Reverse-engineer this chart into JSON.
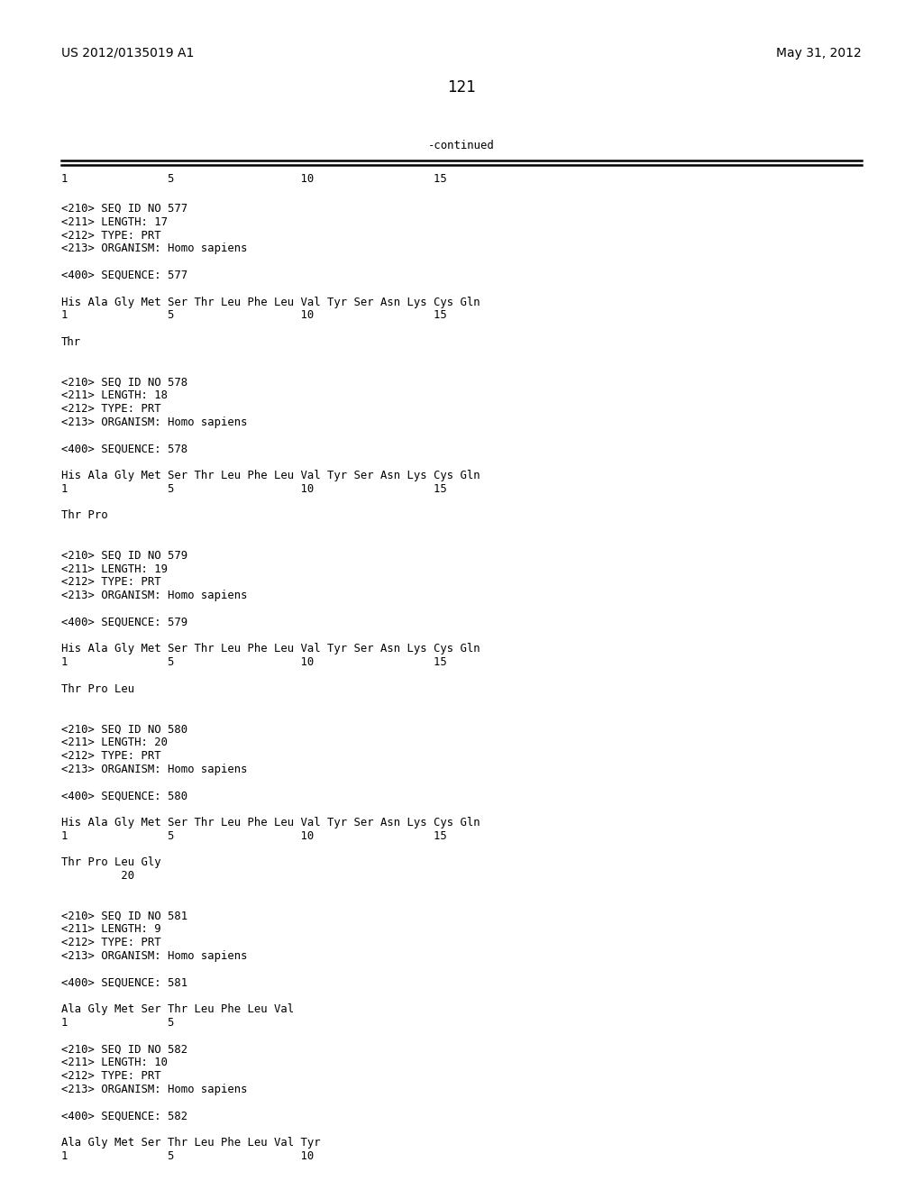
{
  "background_color": "#ffffff",
  "header_left": "US 2012/0135019 A1",
  "header_right": "May 31, 2012",
  "page_number": "121",
  "continued_label": "-continued",
  "lines": [
    "<210> SEQ ID NO 577",
    "<211> LENGTH: 17",
    "<212> TYPE: PRT",
    "<213> ORGANISM: Homo sapiens",
    "",
    "<400> SEQUENCE: 577",
    "",
    "His Ala Gly Met Ser Thr Leu Phe Leu Val Tyr Ser Asn Lys Cys Gln",
    "1               5                   10                  15",
    "",
    "Thr",
    "",
    "",
    "<210> SEQ ID NO 578",
    "<211> LENGTH: 18",
    "<212> TYPE: PRT",
    "<213> ORGANISM: Homo sapiens",
    "",
    "<400> SEQUENCE: 578",
    "",
    "His Ala Gly Met Ser Thr Leu Phe Leu Val Tyr Ser Asn Lys Cys Gln",
    "1               5                   10                  15",
    "",
    "Thr Pro",
    "",
    "",
    "<210> SEQ ID NO 579",
    "<211> LENGTH: 19",
    "<212> TYPE: PRT",
    "<213> ORGANISM: Homo sapiens",
    "",
    "<400> SEQUENCE: 579",
    "",
    "His Ala Gly Met Ser Thr Leu Phe Leu Val Tyr Ser Asn Lys Cys Gln",
    "1               5                   10                  15",
    "",
    "Thr Pro Leu",
    "",
    "",
    "<210> SEQ ID NO 580",
    "<211> LENGTH: 20",
    "<212> TYPE: PRT",
    "<213> ORGANISM: Homo sapiens",
    "",
    "<400> SEQUENCE: 580",
    "",
    "His Ala Gly Met Ser Thr Leu Phe Leu Val Tyr Ser Asn Lys Cys Gln",
    "1               5                   10                  15",
    "",
    "Thr Pro Leu Gly",
    "         20",
    "",
    "",
    "<210> SEQ ID NO 581",
    "<211> LENGTH: 9",
    "<212> TYPE: PRT",
    "<213> ORGANISM: Homo sapiens",
    "",
    "<400> SEQUENCE: 581",
    "",
    "Ala Gly Met Ser Thr Leu Phe Leu Val",
    "1               5",
    "",
    "<210> SEQ ID NO 582",
    "<211> LENGTH: 10",
    "<212> TYPE: PRT",
    "<213> ORGANISM: Homo sapiens",
    "",
    "<400> SEQUENCE: 582",
    "",
    "Ala Gly Met Ser Thr Leu Phe Leu Val Tyr",
    "1               5                   10"
  ],
  "ruler_top": "1               5                   10                  15",
  "header_fontsize": 10,
  "mono_fontsize": 8.8,
  "page_num_fontsize": 12
}
